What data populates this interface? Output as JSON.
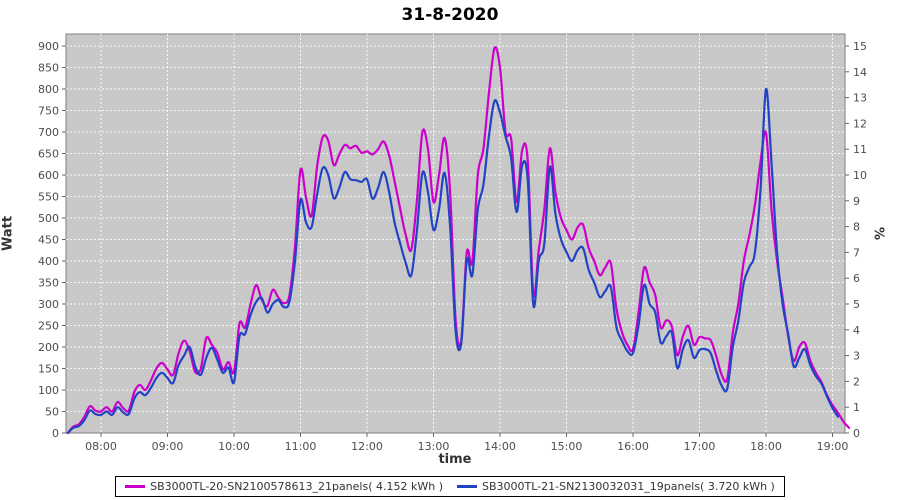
{
  "title": "31-8-2020",
  "chart_data": {
    "type": "line",
    "title": "31-8-2020",
    "xlabel": "time",
    "ylabel_left": "Watt",
    "ylabel_right": "%",
    "grid": true,
    "legend_position": "bottom",
    "plot_background": "#c8c8c8",
    "gridline_color": "#ffffff",
    "x_ticks": [
      "08:00",
      "09:00",
      "10:00",
      "11:00",
      "12:00",
      "13:00",
      "14:00",
      "15:00",
      "16:00",
      "17:00",
      "18:00",
      "19:00"
    ],
    "x_range": [
      "07:28",
      "19:12"
    ],
    "y_left_ticks": [
      0,
      50,
      100,
      150,
      200,
      250,
      300,
      350,
      400,
      450,
      500,
      550,
      600,
      650,
      700,
      750,
      800,
      850,
      900
    ],
    "y_left_range": [
      0,
      925
    ],
    "y_right_ticks": [
      0,
      1,
      2,
      3,
      4,
      5,
      6,
      7,
      8,
      9,
      10,
      11,
      12,
      13,
      14,
      15
    ],
    "y_right_range": [
      0,
      15.4
    ],
    "watts_per_percent": 60,
    "series": [
      {
        "name": "SB3000TL-20-SN2100578613_21panels( 4.152 kWh )",
        "color": "#cc00cc",
        "energy_kwh": 4.152,
        "x": [
          "07:30",
          "07:35",
          "07:40",
          "07:45",
          "07:50",
          "07:55",
          "08:00",
          "08:05",
          "08:10",
          "08:15",
          "08:20",
          "08:25",
          "08:30",
          "08:35",
          "08:40",
          "08:45",
          "08:50",
          "08:55",
          "09:00",
          "09:05",
          "09:10",
          "09:15",
          "09:20",
          "09:25",
          "09:30",
          "09:35",
          "09:40",
          "09:45",
          "09:50",
          "09:55",
          "10:00",
          "10:05",
          "10:10",
          "10:15",
          "10:20",
          "10:25",
          "10:30",
          "10:35",
          "10:40",
          "10:45",
          "10:50",
          "10:55",
          "11:00",
          "11:05",
          "11:10",
          "11:15",
          "11:20",
          "11:25",
          "11:30",
          "11:35",
          "11:40",
          "11:45",
          "11:50",
          "11:55",
          "12:00",
          "12:05",
          "12:10",
          "12:15",
          "12:20",
          "12:25",
          "12:30",
          "12:35",
          "12:40",
          "12:45",
          "12:50",
          "12:55",
          "13:00",
          "13:05",
          "13:10",
          "13:15",
          "13:20",
          "13:25",
          "13:30",
          "13:35",
          "13:40",
          "13:45",
          "13:50",
          "13:55",
          "14:00",
          "14:05",
          "14:10",
          "14:15",
          "14:20",
          "14:25",
          "14:30",
          "14:35",
          "14:40",
          "14:45",
          "14:50",
          "14:55",
          "15:00",
          "15:05",
          "15:10",
          "15:15",
          "15:20",
          "15:25",
          "15:30",
          "15:35",
          "15:40",
          "15:45",
          "15:50",
          "15:55",
          "16:00",
          "16:05",
          "16:10",
          "16:15",
          "16:20",
          "16:25",
          "16:30",
          "16:35",
          "16:40",
          "16:45",
          "16:50",
          "16:55",
          "17:00",
          "17:05",
          "17:10",
          "17:15",
          "17:20",
          "17:25",
          "17:30",
          "17:35",
          "17:40",
          "17:45",
          "17:50",
          "17:55",
          "18:00",
          "18:05",
          "18:10",
          "18:15",
          "18:20",
          "18:25",
          "18:30",
          "18:35",
          "18:40",
          "18:45",
          "18:50",
          "18:55",
          "19:00",
          "19:05",
          "19:10",
          "19:15"
        ],
        "watts": [
          0,
          15,
          20,
          38,
          62,
          52,
          50,
          60,
          50,
          72,
          58,
          52,
          95,
          112,
          100,
          122,
          150,
          163,
          148,
          135,
          185,
          215,
          190,
          142,
          150,
          221,
          205,
          186,
          148,
          165,
          142,
          255,
          245,
          300,
          344,
          310,
          295,
          333,
          315,
          302,
          320,
          433,
          612,
          548,
          505,
          620,
          688,
          680,
          623,
          648,
          670,
          662,
          668,
          652,
          655,
          648,
          660,
          678,
          645,
          584,
          520,
          460,
          426,
          540,
          700,
          660,
          537,
          600,
          686,
          560,
          260,
          215,
          420,
          398,
          600,
          660,
          790,
          895,
          850,
          700,
          685,
          537,
          658,
          635,
          325,
          426,
          520,
          662,
          560,
          500,
          472,
          450,
          478,
          484,
          430,
          400,
          367,
          385,
          395,
          290,
          235,
          205,
          195,
          280,
          384,
          350,
          321,
          245,
          262,
          248,
          181,
          225,
          249,
          205,
          223,
          220,
          216,
          180,
          135,
          126,
          233,
          300,
          400,
          460,
          530,
          630,
          698,
          520,
          400,
          315,
          225,
          168,
          200,
          210,
          168,
          140,
          119,
          88,
          65,
          47,
          26,
          12
        ]
      },
      {
        "name": "SB3000TL-21-SN2130032031_19panels( 3.720 kWh )",
        "color": "#2244c4",
        "energy_kwh": 3.72,
        "x": [
          "07:30",
          "07:35",
          "07:40",
          "07:45",
          "07:50",
          "07:55",
          "08:00",
          "08:05",
          "08:10",
          "08:15",
          "08:20",
          "08:25",
          "08:30",
          "08:35",
          "08:40",
          "08:45",
          "08:50",
          "08:55",
          "09:00",
          "09:05",
          "09:10",
          "09:15",
          "09:20",
          "09:25",
          "09:30",
          "09:35",
          "09:40",
          "09:45",
          "09:50",
          "09:55",
          "10:00",
          "10:05",
          "10:10",
          "10:15",
          "10:20",
          "10:25",
          "10:30",
          "10:35",
          "10:40",
          "10:45",
          "10:50",
          "10:55",
          "11:00",
          "11:05",
          "11:10",
          "11:15",
          "11:20",
          "11:25",
          "11:30",
          "11:35",
          "11:40",
          "11:45",
          "11:50",
          "11:55",
          "12:00",
          "12:05",
          "12:10",
          "12:15",
          "12:20",
          "12:25",
          "12:30",
          "12:35",
          "12:40",
          "12:45",
          "12:50",
          "12:55",
          "13:00",
          "13:05",
          "13:10",
          "13:15",
          "13:20",
          "13:25",
          "13:30",
          "13:35",
          "13:40",
          "13:45",
          "13:50",
          "13:55",
          "14:00",
          "14:05",
          "14:10",
          "14:15",
          "14:20",
          "14:25",
          "14:30",
          "14:35",
          "14:40",
          "14:45",
          "14:50",
          "14:55",
          "15:00",
          "15:05",
          "15:10",
          "15:15",
          "15:20",
          "15:25",
          "15:30",
          "15:35",
          "15:40",
          "15:45",
          "15:50",
          "15:55",
          "16:00",
          "16:05",
          "16:10",
          "16:15",
          "16:20",
          "16:25",
          "16:30",
          "16:35",
          "16:40",
          "16:45",
          "16:50",
          "16:55",
          "17:00",
          "17:05",
          "17:10",
          "17:15",
          "17:20",
          "17:25",
          "17:30",
          "17:35",
          "17:40",
          "17:45",
          "17:50",
          "17:55",
          "18:00",
          "18:05",
          "18:10",
          "18:15",
          "18:20",
          "18:25",
          "18:30",
          "18:35",
          "18:40",
          "18:45",
          "18:50",
          "18:55",
          "19:00",
          "19:05"
        ],
        "watts": [
          0,
          12,
          16,
          30,
          52,
          44,
          42,
          50,
          42,
          60,
          48,
          44,
          80,
          95,
          88,
          105,
          128,
          140,
          128,
          116,
          158,
          180,
          200,
          155,
          135,
          175,
          198,
          170,
          140,
          152,
          118,
          225,
          230,
          275,
          305,
          314,
          280,
          300,
          309,
          293,
          305,
          400,
          542,
          490,
          479,
          555,
          616,
          600,
          546,
          570,
          607,
          590,
          588,
          584,
          590,
          545,
          570,
          607,
          560,
          488,
          440,
          395,
          367,
          470,
          605,
          560,
          472,
          520,
          605,
          480,
          235,
          208,
          402,
          367,
          520,
          577,
          690,
          772,
          745,
          690,
          640,
          514,
          623,
          590,
          298,
          402,
          440,
          619,
          510,
          450,
          421,
          400,
          425,
          430,
          379,
          350,
          316,
          330,
          340,
          247,
          215,
          190,
          186,
          250,
          344,
          300,
          281,
          210,
          225,
          233,
          151,
          195,
          216,
          175,
          193,
          195,
          186,
          145,
          110,
          103,
          200,
          260,
          350,
          386,
          420,
          565,
          800,
          628,
          420,
          300,
          230,
          155,
          175,
          195,
          158,
          132,
          115,
          85,
          58,
          38
        ]
      }
    ]
  }
}
